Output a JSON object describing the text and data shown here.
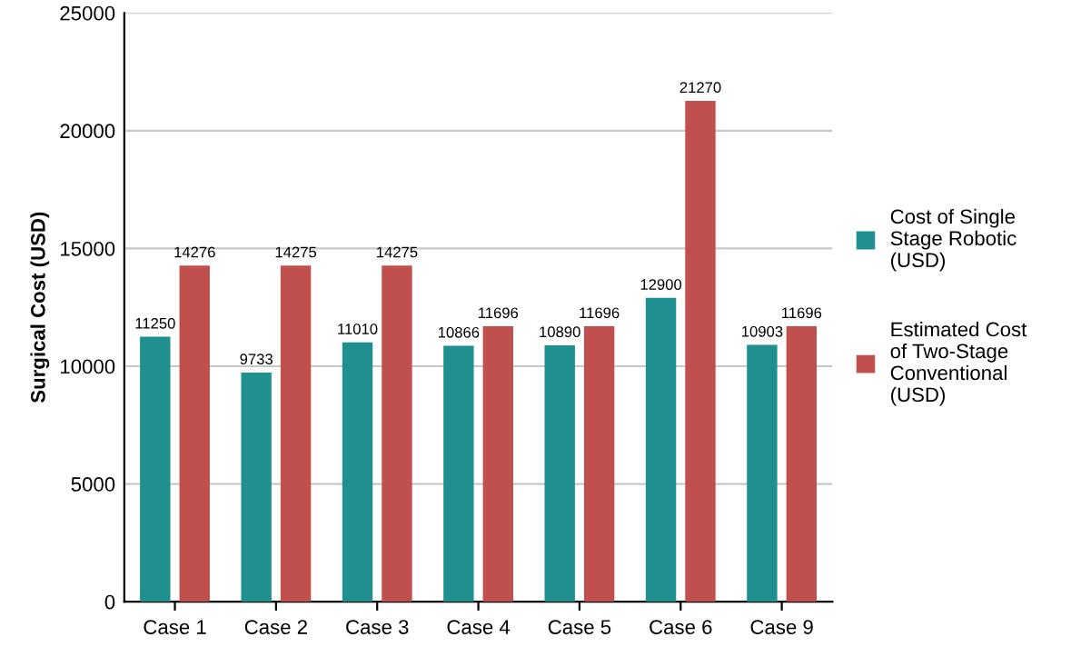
{
  "chart_data": {
    "type": "bar",
    "ylabel": "Surgical Cost (USD)",
    "categories": [
      "Case 1",
      "Case 2",
      "Case 3",
      "Case 4",
      "Case 5",
      "Case 6",
      "Case 9"
    ],
    "series": [
      {
        "name": "Cost of Single\nStage Robotic\n(USD)",
        "color": "#1f8f8f",
        "values": [
          11250,
          9733,
          11010,
          10866,
          10890,
          12900,
          10903
        ]
      },
      {
        "name": "Estimated Cost\nof Two-Stage\nConventional\n(USD)",
        "color": "#c0504d",
        "values": [
          14276,
          14275,
          14275,
          11696,
          11696,
          21270,
          11696
        ]
      }
    ],
    "ylim": [
      0,
      25000
    ],
    "yticks": [
      0,
      5000,
      10000,
      15000,
      20000,
      25000
    ],
    "grid": "y",
    "legend": "right",
    "data_labels": true
  }
}
